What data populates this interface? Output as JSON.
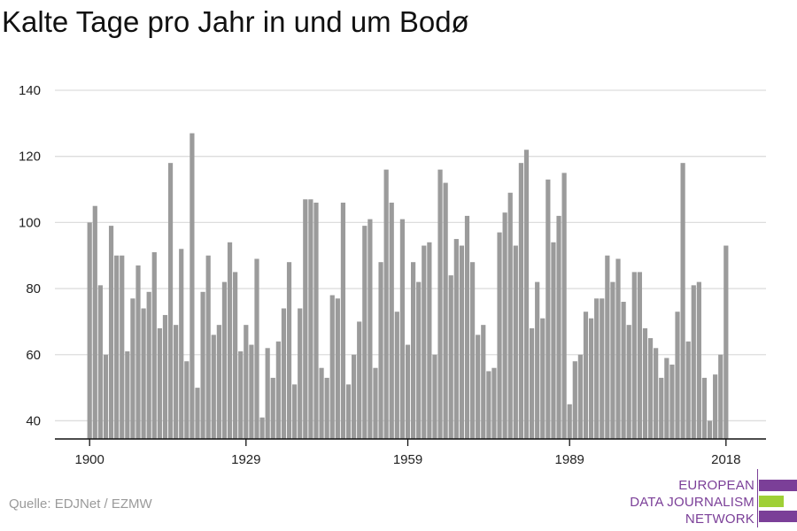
{
  "chart_data": {
    "type": "bar",
    "title": "Kalte Tage pro Jahr in und um Bodø",
    "xlabel": "",
    "ylabel": "",
    "ylim": [
      34.5,
      140
    ],
    "yticks": [
      40,
      60,
      80,
      100,
      120,
      140
    ],
    "xticks": [
      1900,
      1929,
      1959,
      1989,
      2018
    ],
    "grid": true,
    "legend": "none",
    "bar_color": "#9b9b9b",
    "x": [
      1900,
      1901,
      1902,
      1903,
      1904,
      1905,
      1906,
      1907,
      1908,
      1909,
      1910,
      1911,
      1912,
      1913,
      1914,
      1915,
      1916,
      1917,
      1918,
      1919,
      1920,
      1921,
      1922,
      1923,
      1924,
      1925,
      1926,
      1927,
      1928,
      1929,
      1930,
      1931,
      1932,
      1933,
      1934,
      1935,
      1936,
      1937,
      1938,
      1939,
      1940,
      1941,
      1942,
      1943,
      1944,
      1945,
      1946,
      1947,
      1948,
      1949,
      1950,
      1951,
      1952,
      1953,
      1954,
      1955,
      1956,
      1957,
      1958,
      1959,
      1960,
      1961,
      1962,
      1963,
      1964,
      1965,
      1966,
      1967,
      1968,
      1969,
      1970,
      1971,
      1972,
      1973,
      1974,
      1975,
      1976,
      1977,
      1978,
      1979,
      1980,
      1981,
      1982,
      1983,
      1984,
      1985,
      1986,
      1987,
      1988,
      1989,
      1990,
      1991,
      1992,
      1993,
      1994,
      1995,
      1996,
      1997,
      1998,
      1999,
      2000,
      2001,
      2002,
      2003,
      2004,
      2005,
      2006,
      2007,
      2008,
      2009,
      2010,
      2011,
      2012,
      2013,
      2014,
      2015,
      2016,
      2017,
      2018
    ],
    "values": [
      100,
      105,
      81,
      60,
      99,
      90,
      90,
      61,
      77,
      87,
      74,
      79,
      91,
      68,
      72,
      118,
      69,
      92,
      58,
      127,
      50,
      79,
      90,
      66,
      69,
      82,
      94,
      85,
      61,
      69,
      63,
      89,
      41,
      62,
      53,
      64,
      74,
      88,
      51,
      74,
      107,
      107,
      106,
      56,
      53,
      78,
      77,
      106,
      51,
      60,
      70,
      99,
      101,
      56,
      88,
      116,
      106,
      73,
      101,
      63,
      88,
      82,
      93,
      94,
      60,
      116,
      112,
      84,
      95,
      93,
      102,
      88,
      66,
      69,
      55,
      56,
      97,
      103,
      109,
      93,
      118,
      122,
      68,
      82,
      71,
      113,
      94,
      102,
      115,
      45,
      58,
      60,
      73,
      71,
      77,
      77,
      90,
      82,
      89,
      76,
      69,
      85,
      85,
      68,
      65,
      62,
      53,
      59,
      57,
      73,
      118,
      64,
      81,
      82,
      53,
      40,
      54,
      60,
      93
    ]
  },
  "source": "Quelle: EDJNet / EZMW",
  "logo": {
    "line1": "EUROPEAN",
    "line2": "DATA JOURNALISM",
    "line3": "NETWORK",
    "colors": {
      "purple": "#7b3f98",
      "green": "#9fd036"
    }
  }
}
